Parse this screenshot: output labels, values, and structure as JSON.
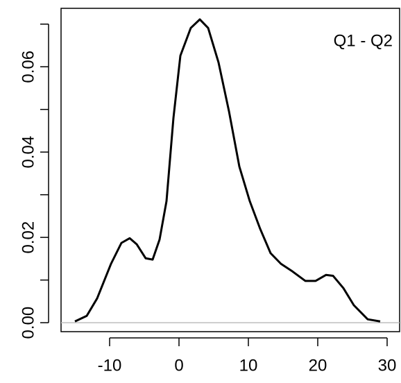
{
  "chart_data": {
    "type": "line",
    "annotation": "Q1 - Q2",
    "x": [
      -15,
      -13.3,
      -11.8,
      -9.8,
      -8.3,
      -7.1,
      -6.1,
      -4.8,
      -3.8,
      -2.8,
      -1.8,
      -0.8,
      0.2,
      1.7,
      3.0,
      4.2,
      5.7,
      7.2,
      8.7,
      10.2,
      11.7,
      13.2,
      14.7,
      16.2,
      18.2,
      19.7,
      21.2,
      22.2,
      23.7,
      25.2,
      27.2,
      29
    ],
    "series": [
      {
        "color": "#000000",
        "values": [
          0.0003,
          0.0016,
          0.0057,
          0.0138,
          0.0187,
          0.0198,
          0.0184,
          0.0151,
          0.0148,
          0.0195,
          0.0285,
          0.048,
          0.0626,
          0.0691,
          0.0711,
          0.0691,
          0.061,
          0.0496,
          0.0366,
          0.0285,
          0.022,
          0.0163,
          0.0138,
          0.0122,
          0.0098,
          0.0098,
          0.0112,
          0.011,
          0.0081,
          0.0041,
          0.0008,
          0.0003
        ]
      }
    ],
    "xlim": [
      -17,
      31.8
    ],
    "ylim": [
      -0.0021,
      0.0737
    ],
    "xticks": [
      -10,
      0,
      10,
      20,
      30
    ],
    "yticks": [
      {
        "value": 0,
        "label": "0.00"
      },
      {
        "value": 0.01,
        "label": null
      },
      {
        "value": 0.02,
        "label": "0.02"
      },
      {
        "value": 0.03,
        "label": null
      },
      {
        "value": 0.04,
        "label": "0.04"
      },
      {
        "value": 0.05,
        "label": null
      },
      {
        "value": 0.06,
        "label": "0.06"
      },
      {
        "value": 0.07,
        "label": null
      }
    ],
    "reference_line": {
      "value": 0,
      "color": "#bebebe"
    }
  }
}
